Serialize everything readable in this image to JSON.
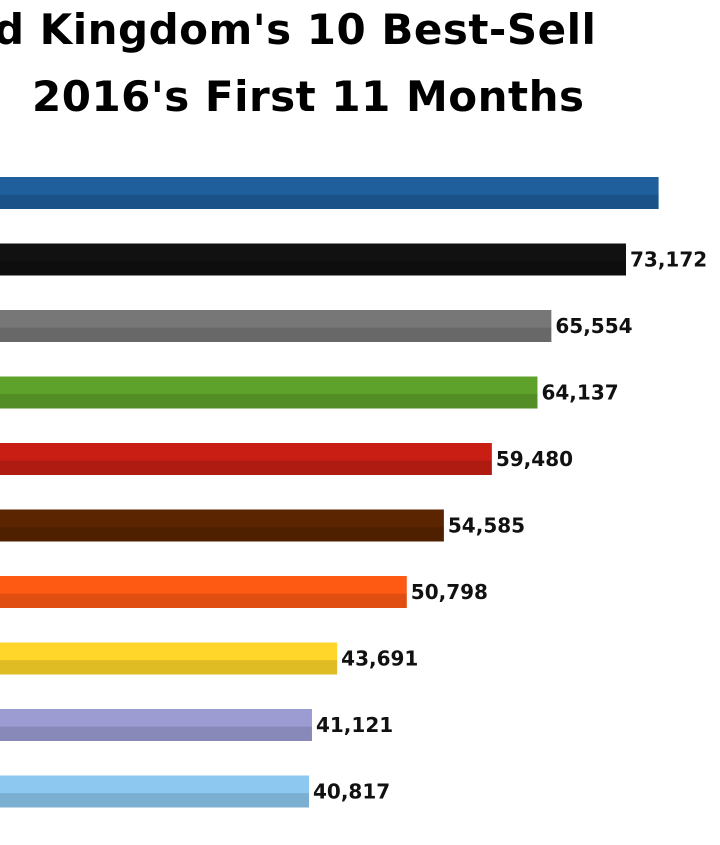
{
  "chart_data": {
    "type": "bar",
    "orientation": "horizontal",
    "title_line_1": "d Kingdom's 10 Best-Sell",
    "title_line_2": "2016's First 11 Months",
    "values": [
      76500,
      73172,
      65554,
      64137,
      59480,
      54585,
      50798,
      43691,
      41121,
      40817
    ],
    "data_labels": [
      "",
      "73,172",
      "65,554",
      "64,137",
      "59,480",
      "54,585",
      "50,798",
      "43,691",
      "41,121",
      "40,817"
    ],
    "colors": [
      "#1f5f9c",
      "#111111",
      "#777777",
      "#5ea12b",
      "#c81e14",
      "#5a2500",
      "#ff5a14",
      "#ffd629",
      "#9c9cd3",
      "#8cc8f0"
    ],
    "legend": "none",
    "grid": false
  }
}
